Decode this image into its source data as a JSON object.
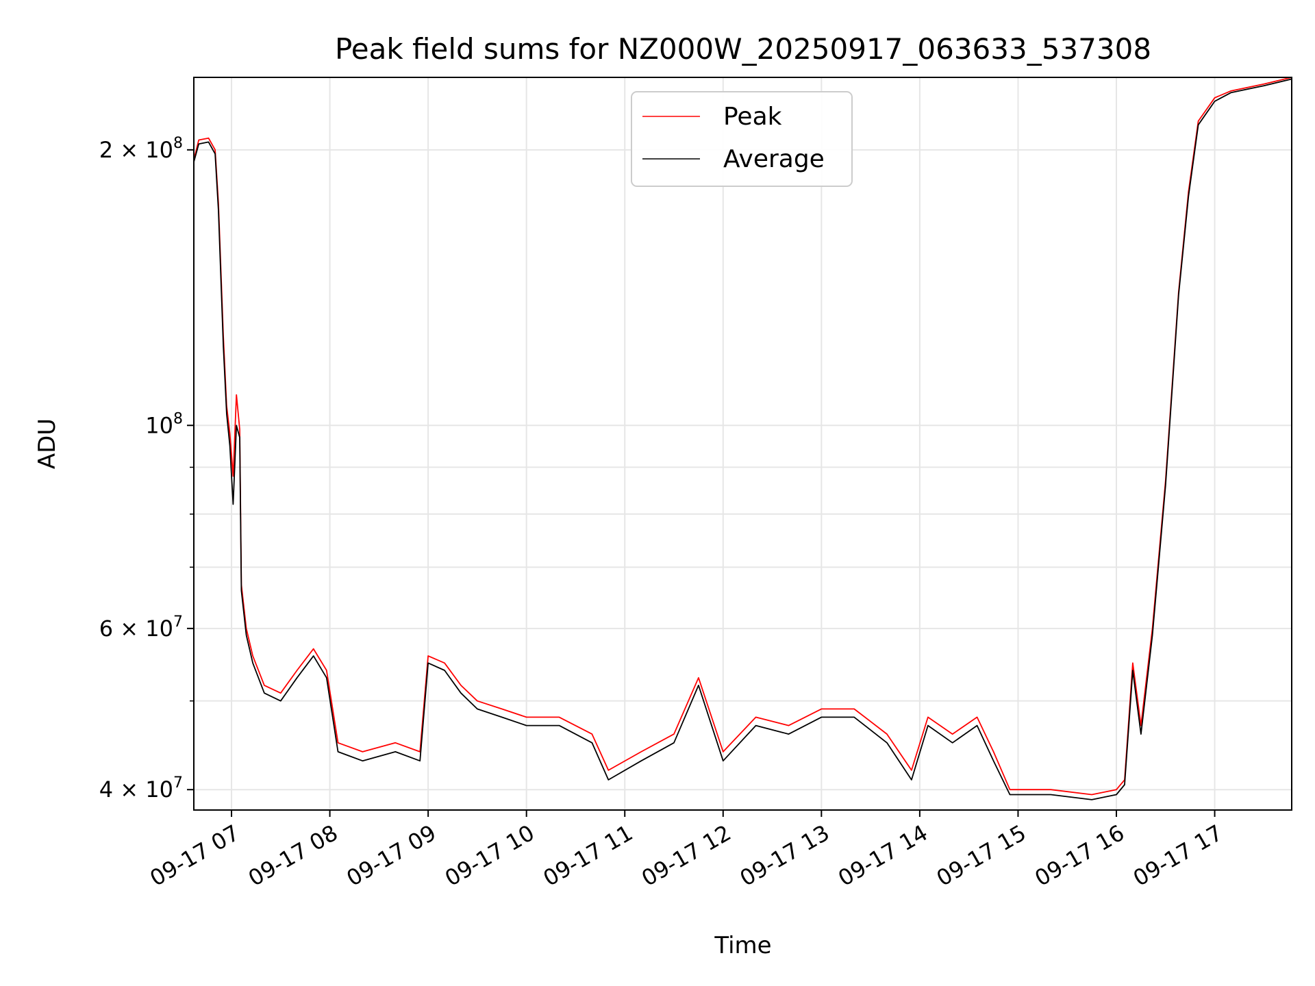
{
  "chart_data": {
    "type": "line",
    "title": "Peak field sums for NZ000W_20250917_063633_537308",
    "xlabel": "Time",
    "ylabel": "ADU",
    "y_scale": "log",
    "ylim": [
      38000000,
      240000000
    ],
    "xlim": [
      "2025-09-17 06:37",
      "2025-09-17 17:47"
    ],
    "grid": true,
    "legend_position": "upper-center",
    "x_ticks": [
      {
        "value": "2025-09-17 07:00",
        "label": "09-17 07"
      },
      {
        "value": "2025-09-17 08:00",
        "label": "09-17 08"
      },
      {
        "value": "2025-09-17 09:00",
        "label": "09-17 09"
      },
      {
        "value": "2025-09-17 10:00",
        "label": "09-17 10"
      },
      {
        "value": "2025-09-17 11:00",
        "label": "09-17 11"
      },
      {
        "value": "2025-09-17 12:00",
        "label": "09-17 12"
      },
      {
        "value": "2025-09-17 13:00",
        "label": "09-17 13"
      },
      {
        "value": "2025-09-17 14:00",
        "label": "09-17 14"
      },
      {
        "value": "2025-09-17 15:00",
        "label": "09-17 15"
      },
      {
        "value": "2025-09-17 16:00",
        "label": "09-17 16"
      },
      {
        "value": "2025-09-17 17:00",
        "label": "09-17 17"
      }
    ],
    "y_ticks": [
      {
        "value": 40000000,
        "base": "4 × 10",
        "exp": "7"
      },
      {
        "value": 60000000,
        "base": "6 × 10",
        "exp": "7"
      },
      {
        "value": 100000000,
        "base": "10",
        "exp": "8"
      },
      {
        "value": 200000000,
        "base": "2 × 10",
        "exp": "8"
      }
    ],
    "y_minor_ticks": [
      50000000,
      70000000,
      80000000,
      90000000
    ],
    "series": [
      {
        "name": "Peak",
        "color": "#ff0000",
        "points": [
          [
            "2025-09-17 06:37",
            195000000
          ],
          [
            "2025-09-17 06:40",
            205000000
          ],
          [
            "2025-09-17 06:46",
            206000000
          ],
          [
            "2025-09-17 06:50",
            200000000
          ],
          [
            "2025-09-17 06:52",
            175000000
          ],
          [
            "2025-09-17 06:55",
            125000000
          ],
          [
            "2025-09-17 06:57",
            105000000
          ],
          [
            "2025-09-17 06:59",
            98000000
          ],
          [
            "2025-09-17 07:01",
            88000000
          ],
          [
            "2025-09-17 07:03",
            108000000
          ],
          [
            "2025-09-17 07:05",
            99000000
          ],
          [
            "2025-09-17 07:06",
            67000000
          ],
          [
            "2025-09-17 07:09",
            60000000
          ],
          [
            "2025-09-17 07:13",
            56000000
          ],
          [
            "2025-09-17 07:20",
            52000000
          ],
          [
            "2025-09-17 07:30",
            51000000
          ],
          [
            "2025-09-17 07:40",
            54000000
          ],
          [
            "2025-09-17 07:50",
            57000000
          ],
          [
            "2025-09-17 07:58",
            54000000
          ],
          [
            "2025-09-17 08:05",
            45000000
          ],
          [
            "2025-09-17 08:20",
            44000000
          ],
          [
            "2025-09-17 08:40",
            45000000
          ],
          [
            "2025-09-17 08:55",
            44000000
          ],
          [
            "2025-09-17 09:00",
            56000000
          ],
          [
            "2025-09-17 09:10",
            55000000
          ],
          [
            "2025-09-17 09:20",
            52000000
          ],
          [
            "2025-09-17 09:30",
            50000000
          ],
          [
            "2025-09-17 09:45",
            49000000
          ],
          [
            "2025-09-17 10:00",
            48000000
          ],
          [
            "2025-09-17 10:20",
            48000000
          ],
          [
            "2025-09-17 10:40",
            46000000
          ],
          [
            "2025-09-17 10:50",
            42000000
          ],
          [
            "2025-09-17 11:10",
            44000000
          ],
          [
            "2025-09-17 11:30",
            46000000
          ],
          [
            "2025-09-17 11:45",
            53000000
          ],
          [
            "2025-09-17 12:00",
            44000000
          ],
          [
            "2025-09-17 12:20",
            48000000
          ],
          [
            "2025-09-17 12:40",
            47000000
          ],
          [
            "2025-09-17 13:00",
            49000000
          ],
          [
            "2025-09-17 13:20",
            49000000
          ],
          [
            "2025-09-17 13:40",
            46000000
          ],
          [
            "2025-09-17 13:55",
            42000000
          ],
          [
            "2025-09-17 14:05",
            48000000
          ],
          [
            "2025-09-17 14:20",
            46000000
          ],
          [
            "2025-09-17 14:35",
            48000000
          ],
          [
            "2025-09-17 14:45",
            44000000
          ],
          [
            "2025-09-17 14:55",
            40000000
          ],
          [
            "2025-09-17 15:20",
            40000000
          ],
          [
            "2025-09-17 15:45",
            39500000
          ],
          [
            "2025-09-17 16:00",
            40000000
          ],
          [
            "2025-09-17 16:05",
            41000000
          ],
          [
            "2025-09-17 16:10",
            55000000
          ],
          [
            "2025-09-17 16:15",
            47000000
          ],
          [
            "2025-09-17 16:22",
            60000000
          ],
          [
            "2025-09-17 16:30",
            87000000
          ],
          [
            "2025-09-17 16:38",
            140000000
          ],
          [
            "2025-09-17 16:44",
            180000000
          ],
          [
            "2025-09-17 16:50",
            215000000
          ],
          [
            "2025-09-17 17:00",
            228000000
          ],
          [
            "2025-09-17 17:10",
            232000000
          ],
          [
            "2025-09-17 17:30",
            236000000
          ],
          [
            "2025-09-17 17:47",
            240000000
          ]
        ]
      },
      {
        "name": "Average",
        "color": "#000000",
        "points": [
          [
            "2025-09-17 06:37",
            194000000
          ],
          [
            "2025-09-17 06:40",
            203000000
          ],
          [
            "2025-09-17 06:46",
            204000000
          ],
          [
            "2025-09-17 06:50",
            198000000
          ],
          [
            "2025-09-17 06:52",
            172000000
          ],
          [
            "2025-09-17 06:55",
            122000000
          ],
          [
            "2025-09-17 06:57",
            103000000
          ],
          [
            "2025-09-17 06:59",
            95000000
          ],
          [
            "2025-09-17 07:01",
            82000000
          ],
          [
            "2025-09-17 07:03",
            100000000
          ],
          [
            "2025-09-17 07:05",
            97000000
          ],
          [
            "2025-09-17 07:06",
            66000000
          ],
          [
            "2025-09-17 07:09",
            59000000
          ],
          [
            "2025-09-17 07:13",
            55000000
          ],
          [
            "2025-09-17 07:20",
            51000000
          ],
          [
            "2025-09-17 07:30",
            50000000
          ],
          [
            "2025-09-17 07:40",
            53000000
          ],
          [
            "2025-09-17 07:50",
            56000000
          ],
          [
            "2025-09-17 07:58",
            53000000
          ],
          [
            "2025-09-17 08:05",
            44000000
          ],
          [
            "2025-09-17 08:20",
            43000000
          ],
          [
            "2025-09-17 08:40",
            44000000
          ],
          [
            "2025-09-17 08:55",
            43000000
          ],
          [
            "2025-09-17 09:00",
            55000000
          ],
          [
            "2025-09-17 09:10",
            54000000
          ],
          [
            "2025-09-17 09:20",
            51000000
          ],
          [
            "2025-09-17 09:30",
            49000000
          ],
          [
            "2025-09-17 09:45",
            48000000
          ],
          [
            "2025-09-17 10:00",
            47000000
          ],
          [
            "2025-09-17 10:20",
            47000000
          ],
          [
            "2025-09-17 10:40",
            45000000
          ],
          [
            "2025-09-17 10:50",
            41000000
          ],
          [
            "2025-09-17 11:10",
            43000000
          ],
          [
            "2025-09-17 11:30",
            45000000
          ],
          [
            "2025-09-17 11:45",
            52000000
          ],
          [
            "2025-09-17 12:00",
            43000000
          ],
          [
            "2025-09-17 12:20",
            47000000
          ],
          [
            "2025-09-17 12:40",
            46000000
          ],
          [
            "2025-09-17 13:00",
            48000000
          ],
          [
            "2025-09-17 13:20",
            48000000
          ],
          [
            "2025-09-17 13:40",
            45000000
          ],
          [
            "2025-09-17 13:55",
            41000000
          ],
          [
            "2025-09-17 14:05",
            47000000
          ],
          [
            "2025-09-17 14:20",
            45000000
          ],
          [
            "2025-09-17 14:35",
            47000000
          ],
          [
            "2025-09-17 14:45",
            43000000
          ],
          [
            "2025-09-17 14:55",
            39500000
          ],
          [
            "2025-09-17 15:20",
            39500000
          ],
          [
            "2025-09-17 15:45",
            39000000
          ],
          [
            "2025-09-17 16:00",
            39500000
          ],
          [
            "2025-09-17 16:05",
            40500000
          ],
          [
            "2025-09-17 16:10",
            54000000
          ],
          [
            "2025-09-17 16:15",
            46000000
          ],
          [
            "2025-09-17 16:22",
            59000000
          ],
          [
            "2025-09-17 16:30",
            86000000
          ],
          [
            "2025-09-17 16:38",
            139000000
          ],
          [
            "2025-09-17 16:44",
            178000000
          ],
          [
            "2025-09-17 16:50",
            213000000
          ],
          [
            "2025-09-17 17:00",
            226000000
          ],
          [
            "2025-09-17 17:10",
            231000000
          ],
          [
            "2025-09-17 17:30",
            235000000
          ],
          [
            "2025-09-17 17:47",
            239000000
          ]
        ]
      }
    ]
  }
}
